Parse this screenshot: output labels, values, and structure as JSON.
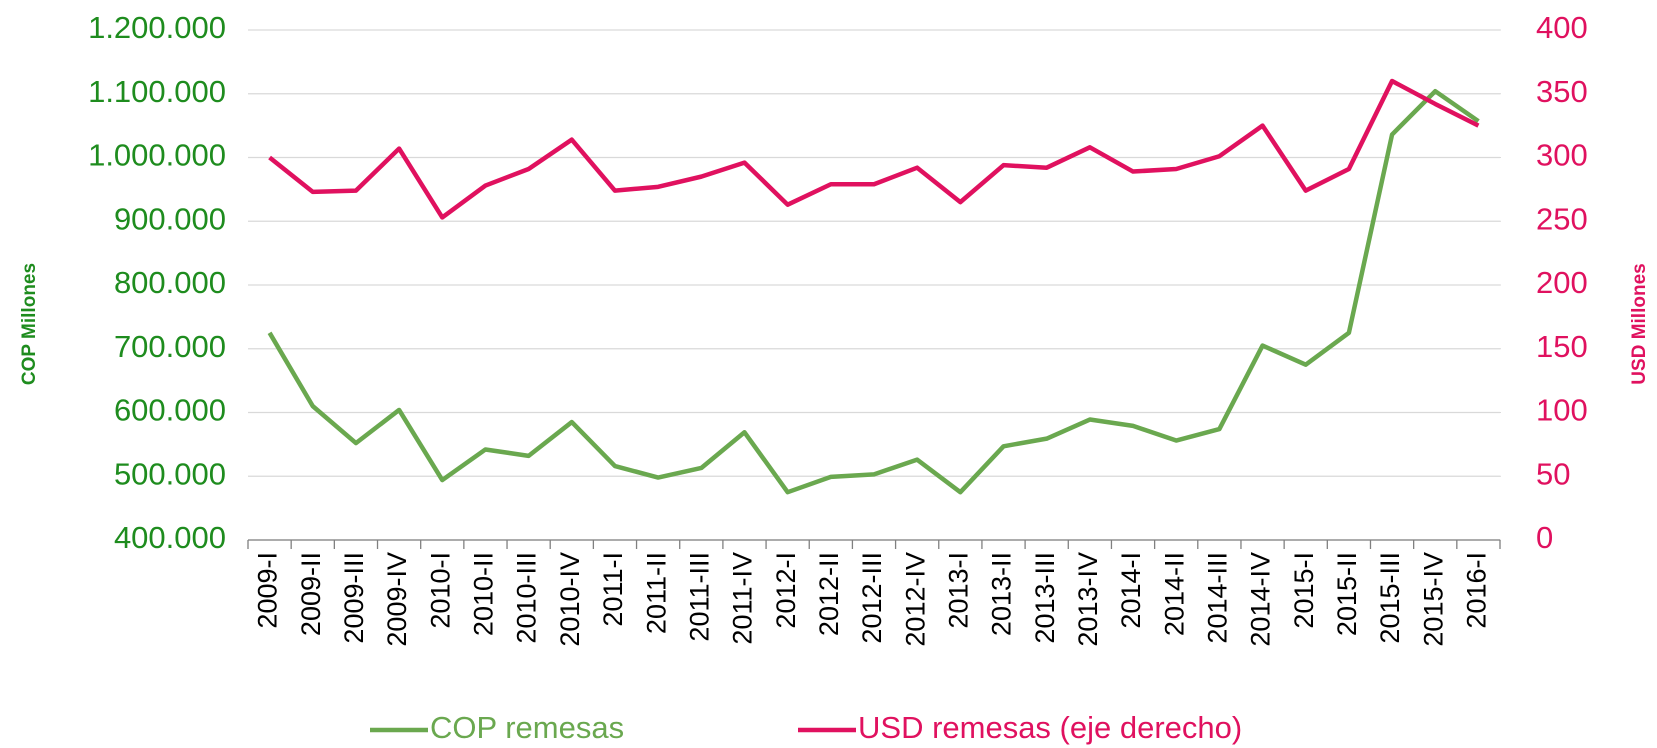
{
  "chart_data": {
    "type": "line",
    "categories": [
      "2009-I",
      "2009-II",
      "2009-III",
      "2009-IV",
      "2010-I",
      "2010-II",
      "2010-III",
      "2010-IV",
      "2011-I",
      "2011-II",
      "2011-III",
      "2011-IV",
      "2012-I",
      "2012-II",
      "2012-III",
      "2012-IV",
      "2013-I",
      "2013-II",
      "2013-III",
      "2013-IV",
      "2014-I",
      "2014-II",
      "2014-III",
      "2014-IV",
      "2015-I",
      "2015-II",
      "2015-III",
      "2015-IV",
      "2016-I"
    ],
    "series": [
      {
        "name": "COP remesas",
        "color": "#6aa84f",
        "values": [
          725000,
          610000,
          552000,
          604000,
          494000,
          542000,
          532000,
          585000,
          516000,
          498000,
          513000,
          569000,
          475000,
          499000,
          503000,
          526000,
          475000,
          547000,
          559000,
          589000,
          579000,
          556000,
          574000,
          705000,
          675000,
          725000,
          1036000,
          1104000,
          1057000
        ]
      },
      {
        "name": "USD remesas (eje derecho)",
        "color": "#e0115f",
        "axis": "y2",
        "values": [
          300,
          273,
          274,
          307,
          253,
          278,
          291,
          314,
          274,
          277,
          285,
          296,
          263,
          279,
          279,
          292,
          265,
          294,
          292,
          308,
          289,
          291,
          301,
          325,
          274,
          291,
          360,
          342,
          325
        ]
      }
    ],
    "ylabel": "COP Millones",
    "y2label": "USD Millones",
    "ylim": [
      400000,
      1200000
    ],
    "yticks": [
      {
        "value": 400000,
        "label": "400.000"
      },
      {
        "value": 500000,
        "label": "500.000"
      },
      {
        "value": 600000,
        "label": "600.000"
      },
      {
        "value": 700000,
        "label": "700.000"
      },
      {
        "value": 800000,
        "label": "800.000"
      },
      {
        "value": 900000,
        "label": "900.000"
      },
      {
        "value": 1000000,
        "label": "1.000.000"
      },
      {
        "value": 1100000,
        "label": "1.100.000"
      },
      {
        "value": 1200000,
        "label": "1.200.000"
      }
    ],
    "y2lim": [
      0,
      400
    ],
    "y2ticks": [
      0,
      50,
      100,
      150,
      200,
      250,
      300,
      350,
      400
    ],
    "ytick_color": "#1e8c1e",
    "y2tick_color": "#e0115f",
    "grid": true,
    "legend": "bottom"
  }
}
